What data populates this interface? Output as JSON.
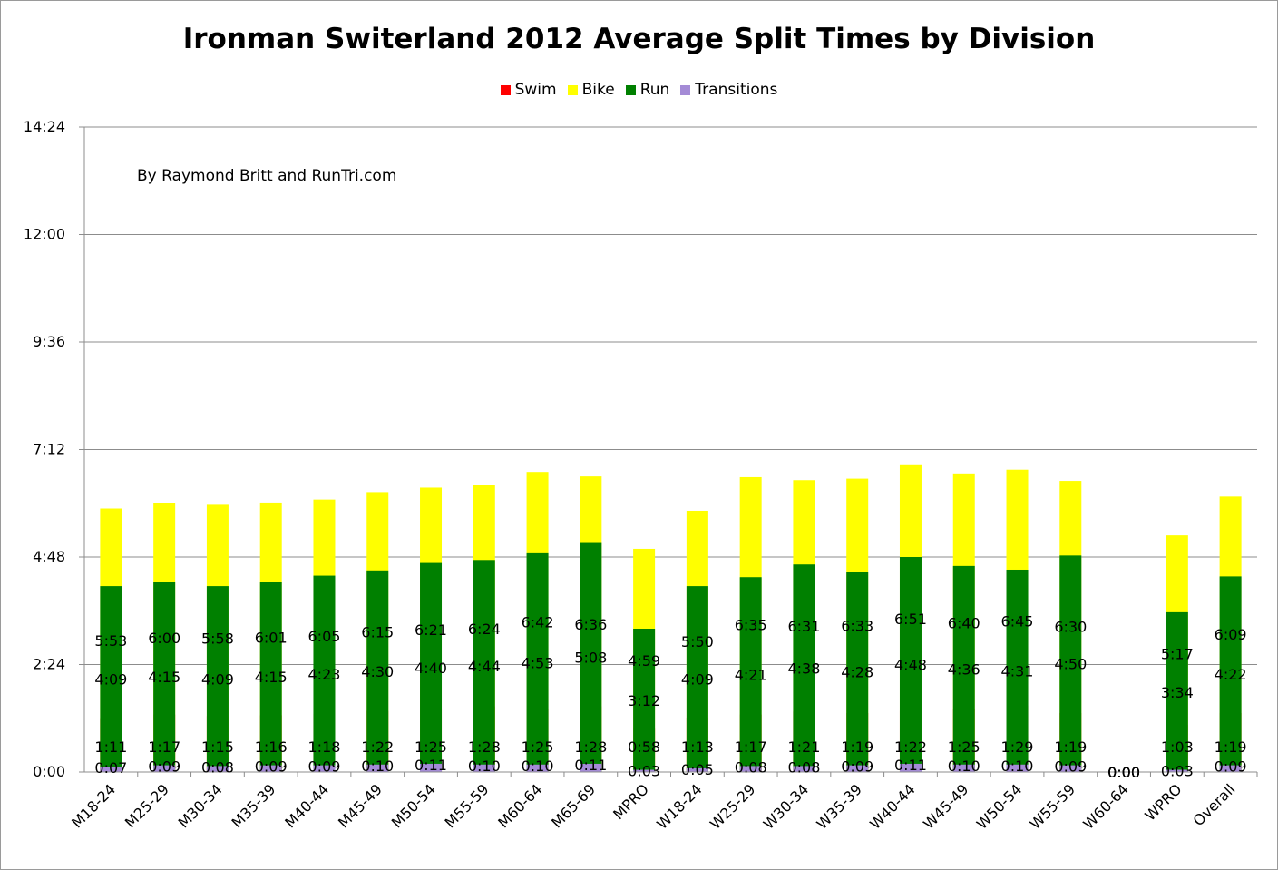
{
  "chart_data": {
    "type": "bar",
    "stacked": true,
    "title": "Ironman Switerland 2012 Average Split Times by Division",
    "credit": "By Raymond Britt and RunTri.com",
    "xlabel": "",
    "ylabel": "",
    "ylim": [
      0,
      864
    ],
    "yticks": [
      {
        "value": 0,
        "label": "0:00"
      },
      {
        "value": 144,
        "label": "2:24"
      },
      {
        "value": 288,
        "label": "4:48"
      },
      {
        "value": 432,
        "label": "7:12"
      },
      {
        "value": 576,
        "label": "9:36"
      },
      {
        "value": 720,
        "label": "12:00"
      },
      {
        "value": 864,
        "label": "14:24"
      }
    ],
    "grid": true,
    "legend_position": "top",
    "categories": [
      "M18-24",
      "M25-29",
      "M30-34",
      "M35-39",
      "M40-44",
      "M45-49",
      "M50-54",
      "M55-59",
      "M60-64",
      "M65-69",
      "MPRO",
      "W18-24",
      "W25-29",
      "W30-34",
      "W35-39",
      "W40-44",
      "W45-49",
      "W50-54",
      "W55-59",
      "W60-64",
      "WPRO",
      "Overall"
    ],
    "series": [
      {
        "name": "Swim",
        "color": "#ff0000",
        "labels": [
          "1:11",
          "1:17",
          "1:15",
          "1:16",
          "1:18",
          "1:22",
          "1:25",
          "1:28",
          "1:25",
          "1:28",
          "0:58",
          "1:13",
          "1:17",
          "1:21",
          "1:19",
          "1:22",
          "1:25",
          "1:29",
          "1:19",
          "0:00",
          "1:03",
          "1:19"
        ],
        "values": [
          71,
          77,
          75,
          76,
          78,
          82,
          85,
          88,
          85,
          88,
          58,
          73,
          77,
          81,
          79,
          82,
          85,
          89,
          79,
          0,
          63,
          79
        ]
      },
      {
        "name": "Bike",
        "color": "#ffff00",
        "labels": [
          "5:53",
          "6:00",
          "5:58",
          "6:01",
          "6:05",
          "6:15",
          "6:21",
          "6:24",
          "6:42",
          "6:36",
          "4:59",
          "5:50",
          "6:35",
          "6:31",
          "6:33",
          "6:51",
          "6:40",
          "6:45",
          "6:30",
          "0:00",
          "5:17",
          "6:09"
        ],
        "values": [
          353,
          360,
          358,
          361,
          365,
          375,
          381,
          384,
          402,
          396,
          299,
          350,
          395,
          391,
          393,
          411,
          400,
          405,
          390,
          0,
          317,
          369
        ]
      },
      {
        "name": "Run",
        "color": "#008000",
        "labels": [
          "4:09",
          "4:15",
          "4:09",
          "4:15",
          "4:23",
          "4:30",
          "4:40",
          "4:44",
          "4:53",
          "5:08",
          "3:12",
          "4:09",
          "4:21",
          "4:38",
          "4:28",
          "4:48",
          "4:36",
          "4:31",
          "4:50",
          "0:00",
          "3:34",
          "4:22"
        ],
        "values": [
          249,
          255,
          249,
          255,
          263,
          270,
          280,
          284,
          293,
          308,
          192,
          249,
          261,
          278,
          268,
          288,
          276,
          271,
          290,
          0,
          214,
          262
        ]
      },
      {
        "name": "Transitions",
        "color": "#a48bd6",
        "labels": [
          "0:07",
          "0:09",
          "0:08",
          "0:09",
          "0:09",
          "0:10",
          "0:11",
          "0:10",
          "0:10",
          "0:11",
          "0:03",
          "0:05",
          "0:08",
          "0:08",
          "0:09",
          "0:11",
          "0:10",
          "0:10",
          "0:09",
          "0:00",
          "0:03",
          "0:09"
        ],
        "values": [
          7,
          9,
          8,
          9,
          9,
          10,
          11,
          10,
          10,
          11,
          3,
          5,
          8,
          8,
          9,
          11,
          10,
          10,
          9,
          0,
          3,
          9
        ]
      }
    ]
  }
}
